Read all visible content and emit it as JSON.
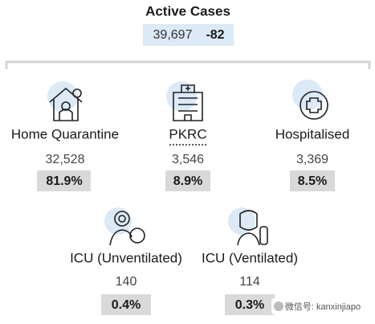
{
  "header": {
    "title": "Active Cases",
    "total": "39,697",
    "change": "-82"
  },
  "items": [
    {
      "label": "Home Quarantine",
      "count": "32,528",
      "percent": "81.9%"
    },
    {
      "label": "PKRC",
      "count": "3,546",
      "percent": "8.9%"
    },
    {
      "label": "Hospitalised",
      "count": "3,369",
      "percent": "8.5%"
    },
    {
      "label": "ICU (Unventilated)",
      "count": "140",
      "percent": "0.4%"
    },
    {
      "label": "ICU (Ventilated)",
      "count": "114",
      "percent": "0.3%"
    }
  ],
  "watermark": "微信号: kanxinjiapo"
}
